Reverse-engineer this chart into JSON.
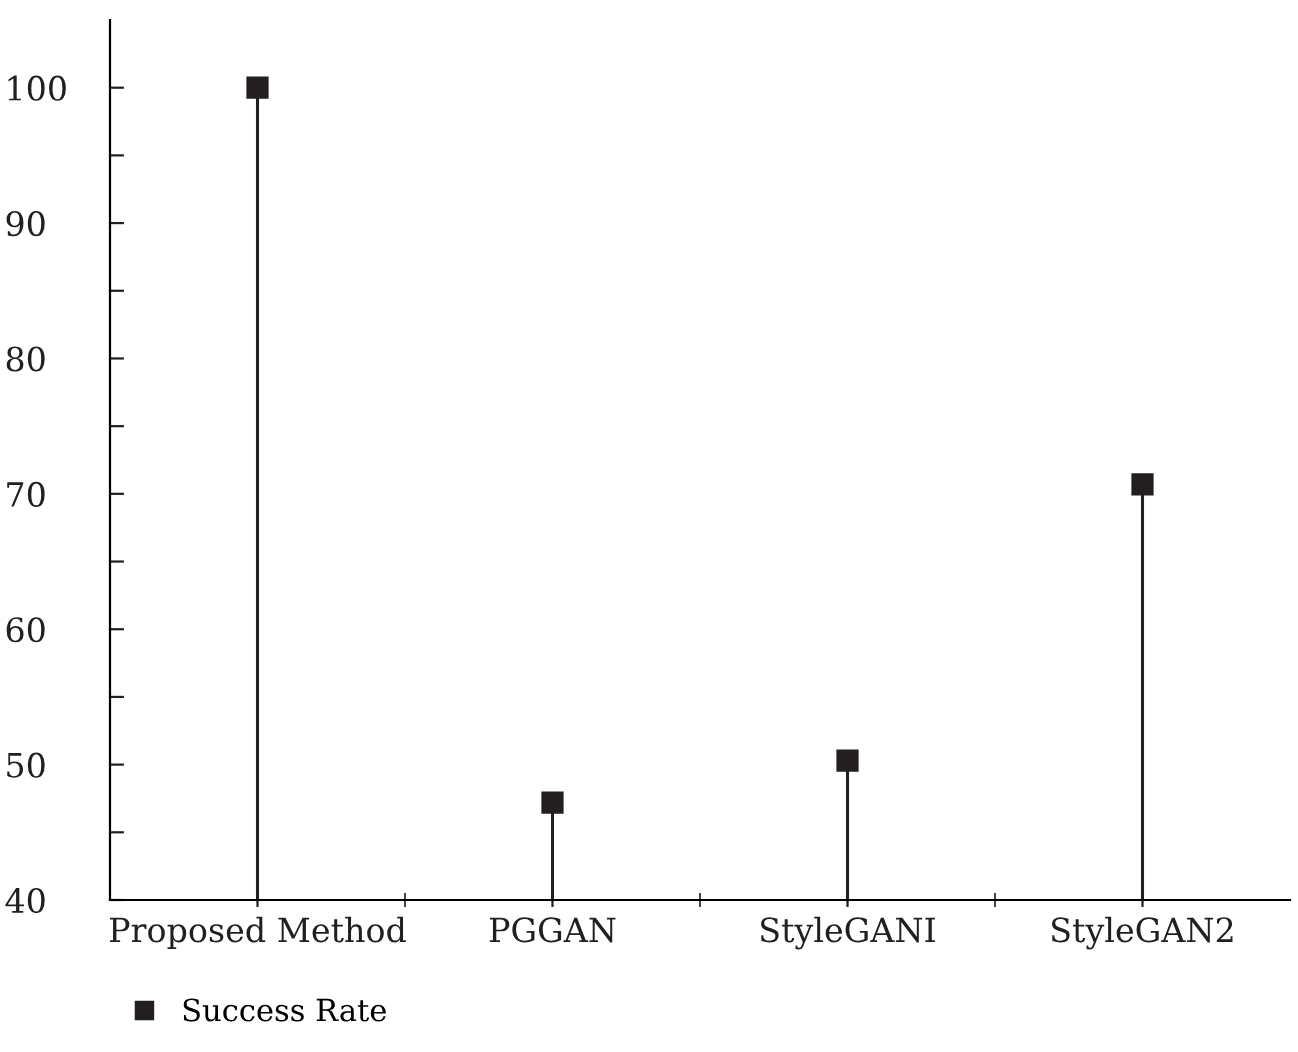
{
  "chart_data": {
    "type": "lollipop",
    "categories": [
      "Proposed Method",
      "PGGAN",
      "StyleGANI",
      "StyleGAN2"
    ],
    "series": [
      {
        "name": "Success Rate",
        "color": "#231f20",
        "values": [
          100,
          47.2,
          50.3,
          70.7
        ]
      }
    ],
    "ylim": [
      40,
      105
    ],
    "yticks": [
      40,
      {
        "value": 45,
        "label": null
      },
      50,
      {
        "value": 55,
        "label": null
      },
      60,
      {
        "value": 65,
        "label": null
      },
      70,
      {
        "value": 75,
        "label": null
      },
      80,
      {
        "value": 85,
        "label": null
      },
      90,
      {
        "value": 95,
        "label": null
      },
      100
    ],
    "marker": "square",
    "legend": "bottom left"
  }
}
